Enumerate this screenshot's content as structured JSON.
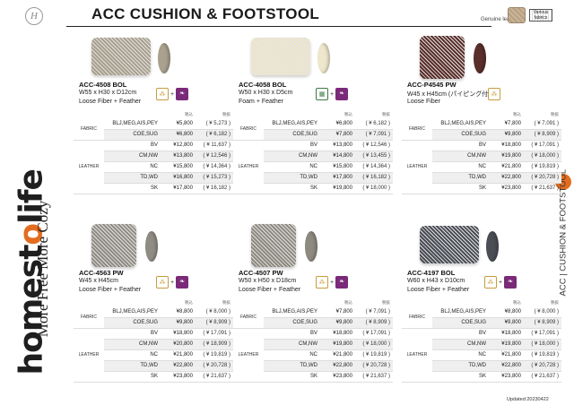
{
  "brand": {
    "logo_letter": "H",
    "name_pre": "homest",
    "name_o": "o",
    "name_post": "life",
    "tagline": "More Free More Cozy"
  },
  "header": {
    "title": "ACC CUSHION & FOOTSTOOL",
    "legend_genuine": "Genuine leather",
    "legend_various": "Various fabrics"
  },
  "side": {
    "label_acc": "ACC",
    "label_cat": "CUSHION & FOOTSTOOL",
    "vertical": "ACC | CUSHION & FOOTSTOOL"
  },
  "colors": {
    "accent": "#e36d1e",
    "feather": "#7a2a78",
    "row_shade": "#efefef"
  },
  "table_head": {
    "price": "税込",
    "tax_excl": "税抜"
  },
  "products": [
    {
      "code": "ACC-4508 BOL",
      "dim": "W55 x H30 x D12cm",
      "fill": "Loose Fiber + Feather",
      "icons": [
        "fiber-icon",
        "feather-icon"
      ],
      "swatch": "#a9a08d",
      "rows": [
        {
          "cat": "FABRIC",
          "var": "BLJ,MEG,AIS,PEY",
          "price": "¥5,800",
          "tax": "( ¥ 5,273 )"
        },
        {
          "cat": "",
          "var": "COE,SUG",
          "price": "¥6,800",
          "tax": "( ¥ 6,182 )"
        },
        {
          "cat": "LEATHER",
          "var": "BV",
          "price": "¥12,800",
          "tax": "( ¥ 11,637 )"
        },
        {
          "cat": "",
          "var": "CM,NW",
          "price": "¥13,800",
          "tax": "( ¥ 12,546 )"
        },
        {
          "cat": "",
          "var": "NC",
          "price": "¥15,800",
          "tax": "( ¥ 14,364 )"
        },
        {
          "cat": "",
          "var": "TD,WD",
          "price": "¥16,800",
          "tax": "( ¥ 15,273 )"
        },
        {
          "cat": "",
          "var": "SK",
          "price": "¥17,800",
          "tax": "( ¥ 16,182 )"
        }
      ]
    },
    {
      "code": "ACC-4058 BOL",
      "dim": "W50 x H30 x D5cm",
      "fill": "Foam + Feather",
      "icons": [
        "foam-icon",
        "feather-icon"
      ],
      "swatch": "#efe7cc",
      "rows": [
        {
          "cat": "FABRIC",
          "var": "BLJ,MEG,AIS,PEY",
          "price": "¥6,800",
          "tax": "( ¥ 6,182 )"
        },
        {
          "cat": "",
          "var": "COE,SUG",
          "price": "¥7,800",
          "tax": "( ¥ 7,091 )"
        },
        {
          "cat": "LEATHER",
          "var": "BV",
          "price": "¥13,800",
          "tax": "( ¥ 12,546 )"
        },
        {
          "cat": "",
          "var": "CM,NW",
          "price": "¥14,800",
          "tax": "( ¥ 13,455 )"
        },
        {
          "cat": "",
          "var": "NC",
          "price": "¥15,800",
          "tax": "( ¥ 14,364 )"
        },
        {
          "cat": "",
          "var": "TD,WD",
          "price": "¥17,800",
          "tax": "( ¥ 16,182 )"
        },
        {
          "cat": "",
          "var": "SK",
          "price": "¥19,800",
          "tax": "( ¥ 18,000 )"
        }
      ]
    },
    {
      "code": "ACC-P4545 PW",
      "dim": "W45 x H45cm (パイピング付き)",
      "fill": "Loose Fiber",
      "icons": [
        "fiber-icon"
      ],
      "swatch": "#5a2f2a",
      "rows": [
        {
          "cat": "FABRIC",
          "var": "BLJ,MEG,AIS,PEY",
          "price": "¥7,800",
          "tax": "( ¥ 7,091 )"
        },
        {
          "cat": "",
          "var": "COE,SUG",
          "price": "¥9,800",
          "tax": "( ¥ 8,909 )"
        },
        {
          "cat": "LEATHER",
          "var": "BV",
          "price": "¥18,800",
          "tax": "( ¥ 17,091 )"
        },
        {
          "cat": "",
          "var": "CM,NW",
          "price": "¥19,800",
          "tax": "( ¥ 18,000 )"
        },
        {
          "cat": "",
          "var": "NC",
          "price": "¥21,800",
          "tax": "( ¥ 19,819 )"
        },
        {
          "cat": "",
          "var": "TD,WD",
          "price": "¥22,800",
          "tax": "( ¥ 20,728 )"
        },
        {
          "cat": "",
          "var": "SK",
          "price": "¥23,800",
          "tax": "( ¥ 21,637 )"
        }
      ]
    },
    {
      "code": "ACC-4563 PW",
      "dim": "W45 x H45cm",
      "fill": "Loose Fiber + Feather",
      "icons": [
        "fiber-icon",
        "feather-icon"
      ],
      "swatch": "#8f8c84",
      "rows": [
        {
          "cat": "FABRIC",
          "var": "BLJ,MEG,AIS,PEY",
          "price": "¥8,800",
          "tax": "( ¥ 8,000 )"
        },
        {
          "cat": "",
          "var": "COE,SUG",
          "price": "¥9,800",
          "tax": "( ¥ 8,909 )"
        },
        {
          "cat": "LEATHER",
          "var": "BV",
          "price": "¥18,800",
          "tax": "( ¥ 17,091 )"
        },
        {
          "cat": "",
          "var": "CM,NW",
          "price": "¥20,800",
          "tax": "( ¥ 18,909 )"
        },
        {
          "cat": "",
          "var": "NC",
          "price": "¥21,800",
          "tax": "( ¥ 19,819 )"
        },
        {
          "cat": "",
          "var": "TD,WD",
          "price": "¥22,800",
          "tax": "( ¥ 20,728 )"
        },
        {
          "cat": "",
          "var": "SK",
          "price": "¥23,800",
          "tax": "( ¥ 21,637 )"
        }
      ]
    },
    {
      "code": "ACC-4507 PW",
      "dim": "W50 x H50 x D18cm",
      "fill": "Loose Fiber + Feather",
      "icons": [
        "fiber-icon",
        "feather-icon"
      ],
      "swatch": "#8e8a80",
      "rows": [
        {
          "cat": "FABRIC",
          "var": "BLJ,MEG,AIS,PEY",
          "price": "¥7,800",
          "tax": "( ¥ 7,091 )"
        },
        {
          "cat": "",
          "var": "COE,SUG",
          "price": "¥9,800",
          "tax": "( ¥ 8,909 )"
        },
        {
          "cat": "LEATHER",
          "var": "BV",
          "price": "¥18,800",
          "tax": "( ¥ 17,091 )"
        },
        {
          "cat": "",
          "var": "CM,NW",
          "price": "¥19,800",
          "tax": "( ¥ 18,000 )"
        },
        {
          "cat": "",
          "var": "NC",
          "price": "¥21,800",
          "tax": "( ¥ 19,819 )"
        },
        {
          "cat": "",
          "var": "TD,WD",
          "price": "¥22,800",
          "tax": "( ¥ 20,728 )"
        },
        {
          "cat": "",
          "var": "SK",
          "price": "¥23,800",
          "tax": "( ¥ 21,637 )"
        }
      ]
    },
    {
      "code": "ACC-4197 BOL",
      "dim": "W60 x H43 x D10cm",
      "fill": "Loose Fiber + Feather",
      "icons": [
        "fiber-icon",
        "feather-icon"
      ],
      "swatch": "#4a4d55",
      "rows": [
        {
          "cat": "FABRIC",
          "var": "BLJ,MEG,AIS,PEY",
          "price": "¥8,800",
          "tax": "( ¥ 8,000 )"
        },
        {
          "cat": "",
          "var": "COE,SUG",
          "price": "¥9,800",
          "tax": "( ¥ 8,909 )"
        },
        {
          "cat": "LEATHER",
          "var": "BV",
          "price": "¥18,800",
          "tax": "( ¥ 17,091 )"
        },
        {
          "cat": "",
          "var": "CM,NW",
          "price": "¥19,800",
          "tax": "( ¥ 18,000 )"
        },
        {
          "cat": "",
          "var": "NC",
          "price": "¥21,800",
          "tax": "( ¥ 19,819 )"
        },
        {
          "cat": "",
          "var": "TD,WD",
          "price": "¥22,800",
          "tax": "( ¥ 20,728 )"
        },
        {
          "cat": "",
          "var": "SK",
          "price": "¥23,800",
          "tax": "( ¥ 21,637 )"
        }
      ]
    }
  ],
  "footer": {
    "updated": "Updated:20230422"
  }
}
